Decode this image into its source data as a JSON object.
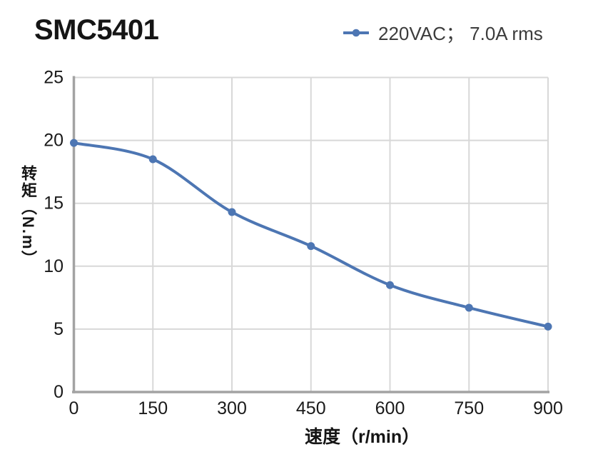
{
  "header": {
    "title": "SMC5401"
  },
  "legend": {
    "label": "220VAC； 7.0A rms",
    "marker": "line-with-dot-icon"
  },
  "chart_data": {
    "type": "line",
    "title": "SMC5401",
    "x": [
      0,
      150,
      300,
      450,
      600,
      750,
      900
    ],
    "series": [
      {
        "name": "220VAC； 7.0A rms",
        "values": [
          19.8,
          18.5,
          14.3,
          11.6,
          8.5,
          6.7,
          5.2
        ]
      }
    ],
    "xlabel": "速度（r/min）",
    "ylabel": "转矩（N.m）",
    "xlim": [
      0,
      900
    ],
    "ylim": [
      0,
      25
    ],
    "x_ticks": [
      0,
      150,
      300,
      450,
      600,
      750,
      900
    ],
    "y_ticks": [
      0,
      5,
      10,
      15,
      20,
      25
    ],
    "grid": true,
    "smooth": true,
    "legend_position": "top-right",
    "line_color": "#4d76b3",
    "marker_color": "#4d76b3",
    "grid_color": "#d8d8d8",
    "axis_color": "#a3a3a3",
    "tick_label_color": "#1a1a1a"
  }
}
